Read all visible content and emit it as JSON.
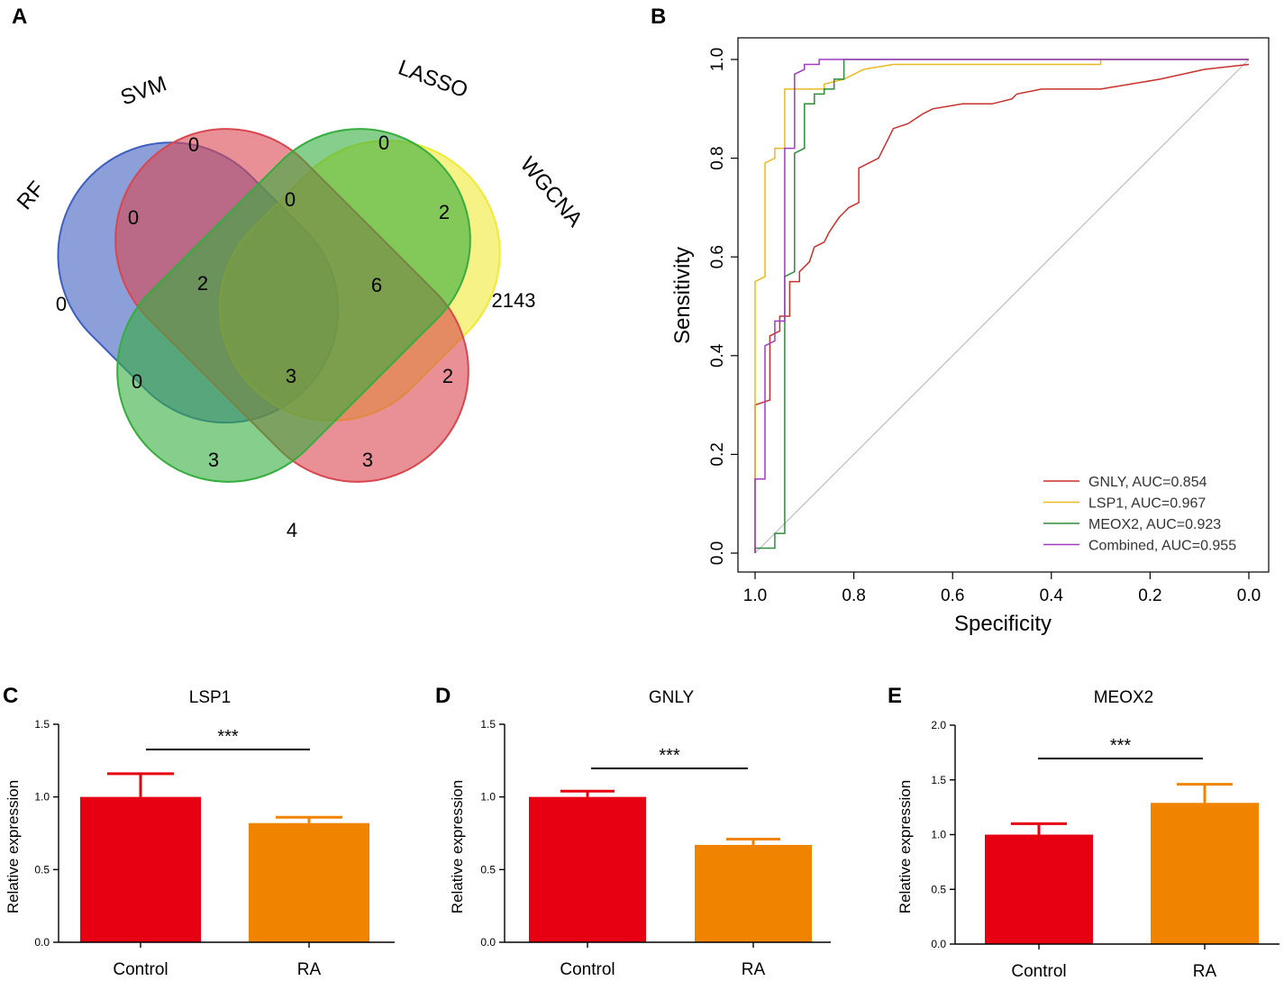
{
  "panels": {
    "A": "A",
    "B": "B",
    "C": "C",
    "D": "D",
    "E": "E"
  },
  "chart_data": [
    {
      "panel": "A",
      "type": "venn",
      "sets": [
        {
          "name": "RF",
          "color": "#3f5fc0"
        },
        {
          "name": "SVM",
          "color": "#d9464e"
        },
        {
          "name": "LASSO",
          "color": "#35ad3e"
        },
        {
          "name": "WGCNA",
          "color": "#f0ea33"
        }
      ],
      "regions": [
        {
          "sets": [
            "SVM"
          ],
          "value": 0
        },
        {
          "sets": [
            "LASSO"
          ],
          "value": 0
        },
        {
          "sets": [
            "RF"
          ],
          "value": 0
        },
        {
          "sets": [
            "WGCNA"
          ],
          "value": 2143
        },
        {
          "sets": [
            "RF",
            "SVM"
          ],
          "value": 0
        },
        {
          "sets": [
            "SVM",
            "LASSO"
          ],
          "value": 0
        },
        {
          "sets": [
            "LASSO",
            "WGCNA"
          ],
          "value": 2
        },
        {
          "sets": [
            "RF",
            "SVM",
            "LASSO"
          ],
          "value": 2
        },
        {
          "sets": [
            "SVM",
            "LASSO",
            "WGCNA"
          ],
          "value": 6
        },
        {
          "sets": [
            "RF",
            "LASSO"
          ],
          "value": 0
        },
        {
          "sets": [
            "RF",
            "SVM",
            "LASSO",
            "WGCNA"
          ],
          "value": 3
        },
        {
          "sets": [
            "SVM",
            "WGCNA"
          ],
          "value": 2
        },
        {
          "sets": [
            "RF",
            "LASSO",
            "WGCNA"
          ],
          "value": 3
        },
        {
          "sets": [
            "RF",
            "SVM",
            "WGCNA"
          ],
          "value": 3
        },
        {
          "sets": [
            "RF",
            "WGCNA"
          ],
          "value": 4
        }
      ]
    },
    {
      "panel": "B",
      "type": "line",
      "title": "",
      "xlabel": "Specificity",
      "ylabel": "Sensitivity",
      "xlim": [
        1.0,
        0.0
      ],
      "ylim": [
        0.0,
        1.0
      ],
      "xticks": [
        "1.0",
        "0.8",
        "0.6",
        "0.4",
        "0.2",
        "0.0"
      ],
      "yticks": [
        "0.0",
        "0.2",
        "0.4",
        "0.6",
        "0.8",
        "1.0"
      ],
      "diagonal": true,
      "legend_position": "bottom-right",
      "series": [
        {
          "name": "GNLY, AUC=0.854",
          "color": "#c9302c",
          "points": [
            [
              1.0,
              0.0
            ],
            [
              1.0,
              0.3
            ],
            [
              0.97,
              0.31
            ],
            [
              0.97,
              0.44
            ],
            [
              0.95,
              0.45
            ],
            [
              0.95,
              0.48
            ],
            [
              0.93,
              0.48
            ],
            [
              0.93,
              0.55
            ],
            [
              0.91,
              0.55
            ],
            [
              0.91,
              0.57
            ],
            [
              0.89,
              0.59
            ],
            [
              0.88,
              0.62
            ],
            [
              0.86,
              0.63
            ],
            [
              0.85,
              0.65
            ],
            [
              0.83,
              0.68
            ],
            [
              0.81,
              0.7
            ],
            [
              0.79,
              0.71
            ],
            [
              0.79,
              0.78
            ],
            [
              0.75,
              0.8
            ],
            [
              0.73,
              0.84
            ],
            [
              0.72,
              0.86
            ],
            [
              0.69,
              0.87
            ],
            [
              0.66,
              0.89
            ],
            [
              0.64,
              0.9
            ],
            [
              0.58,
              0.91
            ],
            [
              0.52,
              0.91
            ],
            [
              0.48,
              0.92
            ],
            [
              0.47,
              0.93
            ],
            [
              0.42,
              0.94
            ],
            [
              0.3,
              0.94
            ],
            [
              0.24,
              0.95
            ],
            [
              0.18,
              0.96
            ],
            [
              0.09,
              0.98
            ],
            [
              0.0,
              0.99
            ]
          ]
        },
        {
          "name": "LSP1, AUC=0.967",
          "color": "#e8b923",
          "points": [
            [
              1.0,
              0.0
            ],
            [
              1.0,
              0.55
            ],
            [
              0.98,
              0.56
            ],
            [
              0.98,
              0.79
            ],
            [
              0.96,
              0.8
            ],
            [
              0.96,
              0.82
            ],
            [
              0.94,
              0.82
            ],
            [
              0.94,
              0.94
            ],
            [
              0.86,
              0.94
            ],
            [
              0.86,
              0.95
            ],
            [
              0.82,
              0.96
            ],
            [
              0.78,
              0.98
            ],
            [
              0.72,
              0.99
            ],
            [
              0.55,
              0.99
            ],
            [
              0.3,
              0.99
            ],
            [
              0.3,
              1.0
            ],
            [
              0.0,
              1.0
            ]
          ]
        },
        {
          "name": "MEOX2, AUC=0.923",
          "color": "#2e8b3a",
          "points": [
            [
              1.0,
              0.0
            ],
            [
              1.0,
              0.01
            ],
            [
              0.96,
              0.01
            ],
            [
              0.96,
              0.04
            ],
            [
              0.94,
              0.04
            ],
            [
              0.94,
              0.56
            ],
            [
              0.92,
              0.57
            ],
            [
              0.92,
              0.81
            ],
            [
              0.9,
              0.82
            ],
            [
              0.9,
              0.91
            ],
            [
              0.88,
              0.91
            ],
            [
              0.88,
              0.93
            ],
            [
              0.86,
              0.93
            ],
            [
              0.86,
              0.94
            ],
            [
              0.84,
              0.94
            ],
            [
              0.84,
              0.96
            ],
            [
              0.82,
              0.96
            ],
            [
              0.82,
              1.0
            ],
            [
              0.0,
              1.0
            ]
          ]
        },
        {
          "name": "Combined, AUC=0.955",
          "color": "#a23bc0",
          "points": [
            [
              1.0,
              0.0
            ],
            [
              1.0,
              0.15
            ],
            [
              0.98,
              0.15
            ],
            [
              0.98,
              0.42
            ],
            [
              0.96,
              0.43
            ],
            [
              0.96,
              0.47
            ],
            [
              0.94,
              0.47
            ],
            [
              0.94,
              0.82
            ],
            [
              0.92,
              0.82
            ],
            [
              0.92,
              0.97
            ],
            [
              0.9,
              0.98
            ],
            [
              0.9,
              0.99
            ],
            [
              0.87,
              0.99
            ],
            [
              0.87,
              1.0
            ],
            [
              0.0,
              1.0
            ]
          ]
        }
      ]
    },
    {
      "panel": "C",
      "type": "bar",
      "title": "LSP1",
      "ylabel": "Relative expression",
      "categories": [
        "Control",
        "RA"
      ],
      "values": [
        1.0,
        0.82
      ],
      "errors": [
        0.16,
        0.04
      ],
      "colors": [
        "#e60012",
        "#f08300"
      ],
      "ylim": [
        0.0,
        1.5
      ],
      "yticks": [
        "0.0",
        "0.5",
        "1.0",
        "1.5"
      ],
      "significance": "***"
    },
    {
      "panel": "D",
      "type": "bar",
      "title": "GNLY",
      "ylabel": "Relative expression",
      "categories": [
        "Control",
        "RA"
      ],
      "values": [
        1.0,
        0.67
      ],
      "errors": [
        0.04,
        0.04
      ],
      "colors": [
        "#e60012",
        "#f08300"
      ],
      "ylim": [
        0.0,
        1.5
      ],
      "yticks": [
        "0.0",
        "0.5",
        "1.0",
        "1.5"
      ],
      "significance": "***"
    },
    {
      "panel": "E",
      "type": "bar",
      "title": "MEOX2",
      "ylabel": "Relative expression",
      "categories": [
        "Control",
        "RA"
      ],
      "values": [
        1.0,
        1.29
      ],
      "errors": [
        0.1,
        0.17
      ],
      "colors": [
        "#e60012",
        "#f08300"
      ],
      "ylim": [
        0.0,
        2.0
      ],
      "yticks": [
        "0.0",
        "0.5",
        "1.0",
        "1.5",
        "2.0"
      ],
      "significance": "***"
    }
  ]
}
